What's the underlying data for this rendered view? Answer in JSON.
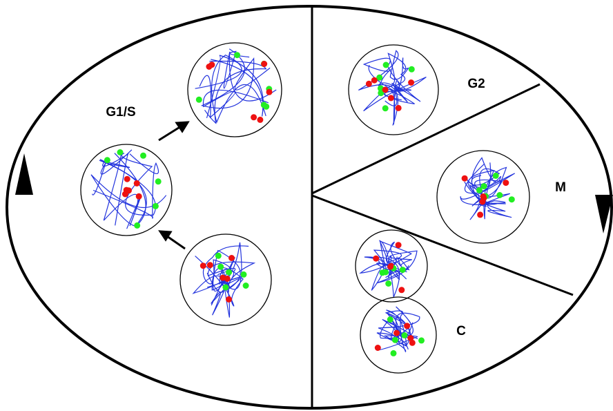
{
  "labels": {
    "g1s": "G1/S",
    "g2": "G2",
    "m": "M",
    "c": "C"
  }
}
